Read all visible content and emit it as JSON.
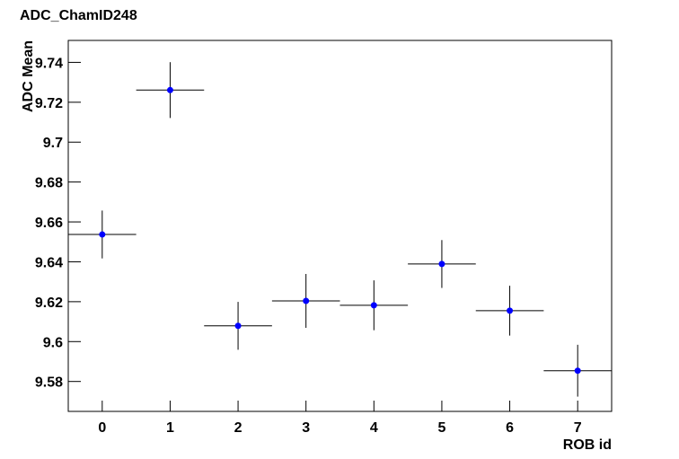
{
  "chart_data": {
    "type": "errorbar",
    "title": "ADC_ChamID248",
    "xlabel": "ROB id",
    "ylabel": "ADC Mean",
    "x": [
      0,
      1,
      2,
      3,
      4,
      5,
      6,
      7
    ],
    "values": [
      9.6537,
      9.7261,
      9.6079,
      9.6204,
      9.6182,
      9.6389,
      9.6155,
      9.5854
    ],
    "errors": [
      0.012,
      0.014,
      0.012,
      0.0135,
      0.0125,
      0.012,
      0.0125,
      0.013
    ],
    "x_errors": [
      0.5,
      0.5,
      0.5,
      0.5,
      0.5,
      0.5,
      0.5,
      0.5
    ],
    "color": "#0000ff",
    "xlim": [
      -0.5,
      7.5
    ],
    "xticks": [
      0,
      1,
      2,
      3,
      4,
      5,
      6,
      7
    ],
    "ylim": [
      9.565,
      9.751
    ],
    "yticks": [
      9.58,
      9.6,
      9.62,
      9.64,
      9.66,
      9.68,
      9.7,
      9.72,
      9.74
    ]
  }
}
